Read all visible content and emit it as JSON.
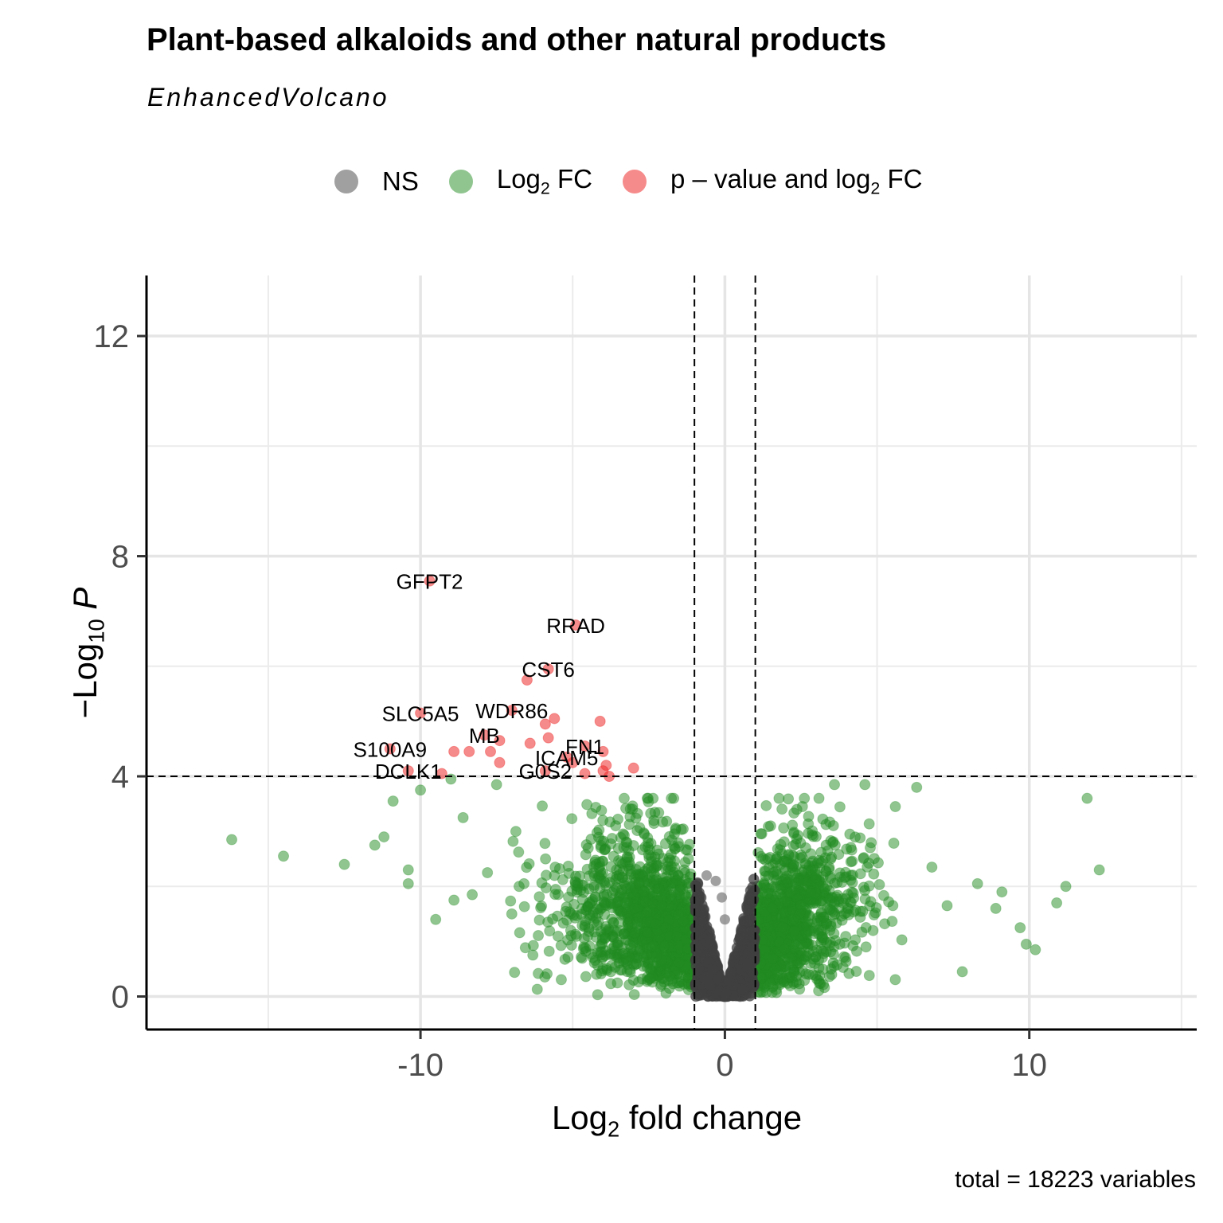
{
  "chart_data": {
    "type": "scatter",
    "title": "Plant-based alkaloids and other natural products",
    "subtitle": "EnhancedVolcano",
    "caption": "total = 18223 variables",
    "xlabel": "Log2 fold change",
    "ylabel": "−Log10 P",
    "xlim": [
      -19,
      15.5
    ],
    "ylim": [
      -0.6,
      13.1
    ],
    "x_ticks": [
      "-10",
      "0",
      "10"
    ],
    "y_ticks": [
      "0",
      "4",
      "8",
      "12"
    ],
    "x_tick_values": [
      -10,
      0,
      10
    ],
    "y_tick_values": [
      0,
      4,
      8,
      12
    ],
    "fc_cutoff": [
      -1,
      1
    ],
    "p_cutoff_log10": 4,
    "grid": true,
    "legend_position": "top",
    "legend": [
      {
        "key": "NS",
        "label_parts": [
          "NS"
        ],
        "color": "#808080"
      },
      {
        "key": "FC",
        "label_parts": [
          "Log",
          "2",
          " FC"
        ],
        "color": "#228B22"
      },
      {
        "key": "P_FC",
        "label_parts": [
          "p – value and log",
          "2",
          " FC"
        ],
        "color": "#EE2C2C"
      }
    ],
    "series_colors": {
      "NS": "#404040",
      "FC": "#228B22",
      "P_FC": "#EE2C2C"
    },
    "significant_points": [
      {
        "label": "GFPT2",
        "x": -9.7,
        "y": 7.55
      },
      {
        "label": "RRAD",
        "x": -4.9,
        "y": 6.75
      },
      {
        "label": "CST6",
        "x": -5.8,
        "y": 5.95
      },
      {
        "label": "",
        "x": -6.5,
        "y": 5.75
      },
      {
        "label": "SLC5A5",
        "x": -10.0,
        "y": 5.15
      },
      {
        "label": "WDR86",
        "x": -7.0,
        "y": 5.2
      },
      {
        "label": "",
        "x": -5.6,
        "y": 5.05
      },
      {
        "label": "",
        "x": -5.9,
        "y": 4.95
      },
      {
        "label": "",
        "x": -4.1,
        "y": 5.0
      },
      {
        "label": "MB",
        "x": -7.9,
        "y": 4.75
      },
      {
        "label": "FN1",
        "x": -4.6,
        "y": 4.55
      },
      {
        "label": "",
        "x": -7.4,
        "y": 4.65
      },
      {
        "label": "",
        "x": -6.4,
        "y": 4.6
      },
      {
        "label": "",
        "x": -5.8,
        "y": 4.7
      },
      {
        "label": "",
        "x": -8.9,
        "y": 4.45
      },
      {
        "label": "",
        "x": -8.4,
        "y": 4.45
      },
      {
        "label": "",
        "x": -7.7,
        "y": 4.45
      },
      {
        "label": "",
        "x": -4.0,
        "y": 4.45
      },
      {
        "label": "ICAM5",
        "x": -5.2,
        "y": 4.35
      },
      {
        "label": "S100A9",
        "x": -11.0,
        "y": 4.5
      },
      {
        "label": "",
        "x": -7.4,
        "y": 4.25
      },
      {
        "label": "",
        "x": -5.0,
        "y": 4.25
      },
      {
        "label": "",
        "x": -3.9,
        "y": 4.2
      },
      {
        "label": "G0S2",
        "x": -5.9,
        "y": 4.1
      },
      {
        "label": "",
        "x": -4.6,
        "y": 4.05
      },
      {
        "label": "",
        "x": -4.0,
        "y": 4.1
      },
      {
        "label": "",
        "x": -3.8,
        "y": 4.0
      },
      {
        "label": "",
        "x": -3.0,
        "y": 4.15
      },
      {
        "label": "DCLK1",
        "x": -10.4,
        "y": 4.1
      },
      {
        "label": "",
        "x": -9.3,
        "y": 4.05
      }
    ],
    "fc_outliers": [
      {
        "x": -16.2,
        "y": 2.85
      },
      {
        "x": -14.5,
        "y": 2.55
      },
      {
        "x": -12.5,
        "y": 2.4
      },
      {
        "x": -11.5,
        "y": 2.75
      },
      {
        "x": -11.2,
        "y": 2.9
      },
      {
        "x": -10.9,
        "y": 3.55
      },
      {
        "x": -10.4,
        "y": 2.3
      },
      {
        "x": -10.4,
        "y": 2.05
      },
      {
        "x": -10.0,
        "y": 3.75
      },
      {
        "x": -9.5,
        "y": 1.4
      },
      {
        "x": -9.0,
        "y": 3.95
      },
      {
        "x": -8.9,
        "y": 1.75
      },
      {
        "x": -8.6,
        "y": 3.25
      },
      {
        "x": -8.3,
        "y": 1.85
      },
      {
        "x": -7.8,
        "y": 2.25
      },
      {
        "x": -7.5,
        "y": 3.85
      },
      {
        "x": -7.0,
        "y": 1.5
      },
      {
        "x": -6.6,
        "y": 2.05
      },
      {
        "x": 3.6,
        "y": 3.85
      },
      {
        "x": 4.6,
        "y": 3.85
      },
      {
        "x": 5.6,
        "y": 3.45
      },
      {
        "x": 6.3,
        "y": 3.8
      },
      {
        "x": 7.8,
        "y": 0.45
      },
      {
        "x": 8.3,
        "y": 2.05
      },
      {
        "x": 8.9,
        "y": 1.6
      },
      {
        "x": 9.1,
        "y": 1.9
      },
      {
        "x": 9.7,
        "y": 1.25
      },
      {
        "x": 9.9,
        "y": 0.95
      },
      {
        "x": 10.2,
        "y": 0.85
      },
      {
        "x": 10.9,
        "y": 1.7
      },
      {
        "x": 11.2,
        "y": 2.0
      },
      {
        "x": 11.9,
        "y": 3.6
      },
      {
        "x": 12.3,
        "y": 2.3
      },
      {
        "x": 6.8,
        "y": 2.35
      },
      {
        "x": 7.3,
        "y": 1.65
      }
    ],
    "ns_outliers": [
      {
        "x": -0.6,
        "y": 2.2
      },
      {
        "x": -0.3,
        "y": 2.1
      },
      {
        "x": -0.1,
        "y": 1.8
      },
      {
        "x": 0.0,
        "y": 1.4
      }
    ]
  }
}
